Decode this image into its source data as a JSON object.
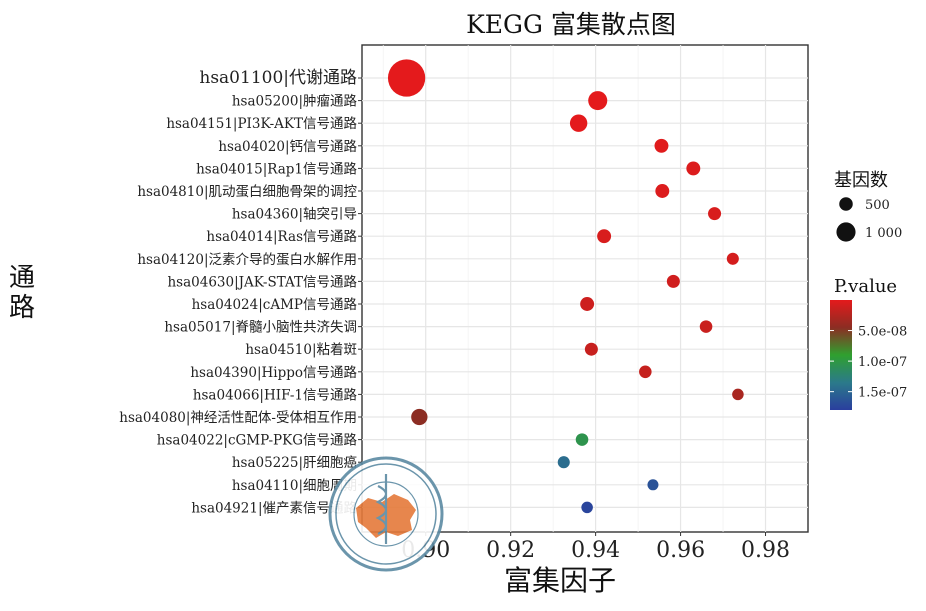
{
  "chart_data": {
    "type": "scatter",
    "title": "KEGG 富集散点图",
    "xlabel": "富集因子",
    "ylabel": "通路",
    "xlim": [
      0.885,
      0.99
    ],
    "xticks": [
      0.9,
      0.92,
      0.94,
      0.96,
      0.98
    ],
    "xtick_labels": [
      "0.90",
      "0.92",
      "0.94",
      "0.96",
      "0.98"
    ],
    "grid": true,
    "categories": [
      "hsa01100|代谢通路",
      "hsa05200|肿瘤通路",
      "hsa04151|PI3K-AKT信号通路",
      "hsa04020|钙信号通路",
      "hsa04015|Rap1信号通路",
      "hsa04810|肌动蛋白细胞骨架的调控",
      "hsa04360|轴突引导",
      "hsa04014|Ras信号通路",
      "hsa04120|泛素介导的蛋白水解作用",
      "hsa04630|JAK-STAT信号通路",
      "hsa04024|cAMP信号通路",
      "hsa05017|脊髓小脑性共济失调",
      "hsa04510|粘着斑",
      "hsa04390|Hippo信号通路",
      "hsa04066|HIF-1信号通路",
      "hsa04080|神经活性配体-受体相互作用",
      "hsa04022|cGMP-PKG信号通路",
      "hsa05225|肝细胞癌",
      "hsa04110|细胞周期",
      "hsa04921|催产素信号通路"
    ],
    "points": [
      {
        "x": 0.8955,
        "count": 1150,
        "pvalue": 1e-12
      },
      {
        "x": 0.9405,
        "count": 300,
        "pvalue": 1e-12
      },
      {
        "x": 0.936,
        "count": 250,
        "pvalue": 1e-12
      },
      {
        "x": 0.9555,
        "count": 160,
        "pvalue": 2e-09
      },
      {
        "x": 0.963,
        "count": 160,
        "pvalue": 4e-09
      },
      {
        "x": 0.9557,
        "count": 160,
        "pvalue": 4e-09
      },
      {
        "x": 0.968,
        "count": 140,
        "pvalue": 6e-09
      },
      {
        "x": 0.942,
        "count": 160,
        "pvalue": 6e-09
      },
      {
        "x": 0.9723,
        "count": 120,
        "pvalue": 8e-09
      },
      {
        "x": 0.9583,
        "count": 140,
        "pvalue": 1e-08
      },
      {
        "x": 0.938,
        "count": 160,
        "pvalue": 1.2e-08
      },
      {
        "x": 0.966,
        "count": 130,
        "pvalue": 1.4e-08
      },
      {
        "x": 0.939,
        "count": 140,
        "pvalue": 1.5e-08
      },
      {
        "x": 0.9517,
        "count": 130,
        "pvalue": 1.6e-08
      },
      {
        "x": 0.9735,
        "count": 110,
        "pvalue": 3e-08
      },
      {
        "x": 0.8985,
        "count": 220,
        "pvalue": 4.5e-08
      },
      {
        "x": 0.9368,
        "count": 130,
        "pvalue": 1.05e-07
      },
      {
        "x": 0.9325,
        "count": 120,
        "pvalue": 1.45e-07
      },
      {
        "x": 0.9535,
        "count": 100,
        "pvalue": 1.65e-07
      },
      {
        "x": 0.938,
        "count": 110,
        "pvalue": 1.75e-07
      }
    ],
    "size_legend": {
      "title": "基因数",
      "values": [
        500,
        1000
      ],
      "labels": [
        "500",
        "1 000"
      ]
    },
    "color_legend": {
      "title": "P.value",
      "min": 0,
      "max": 1.8e-07,
      "ticks": [
        5e-08,
        1e-07,
        1.5e-07
      ],
      "tick_labels": [
        "5.0e-08",
        "1.0e-07",
        "1.5e-07"
      ],
      "colors": [
        "#e41a1c",
        "#8c2d23",
        "#2fa02f",
        "#2b7a8a",
        "#2a3e9e"
      ]
    }
  },
  "watermark": {
    "label": "中华医学会 CHINESE MEDICAL ASSOCIATION 1915"
  }
}
